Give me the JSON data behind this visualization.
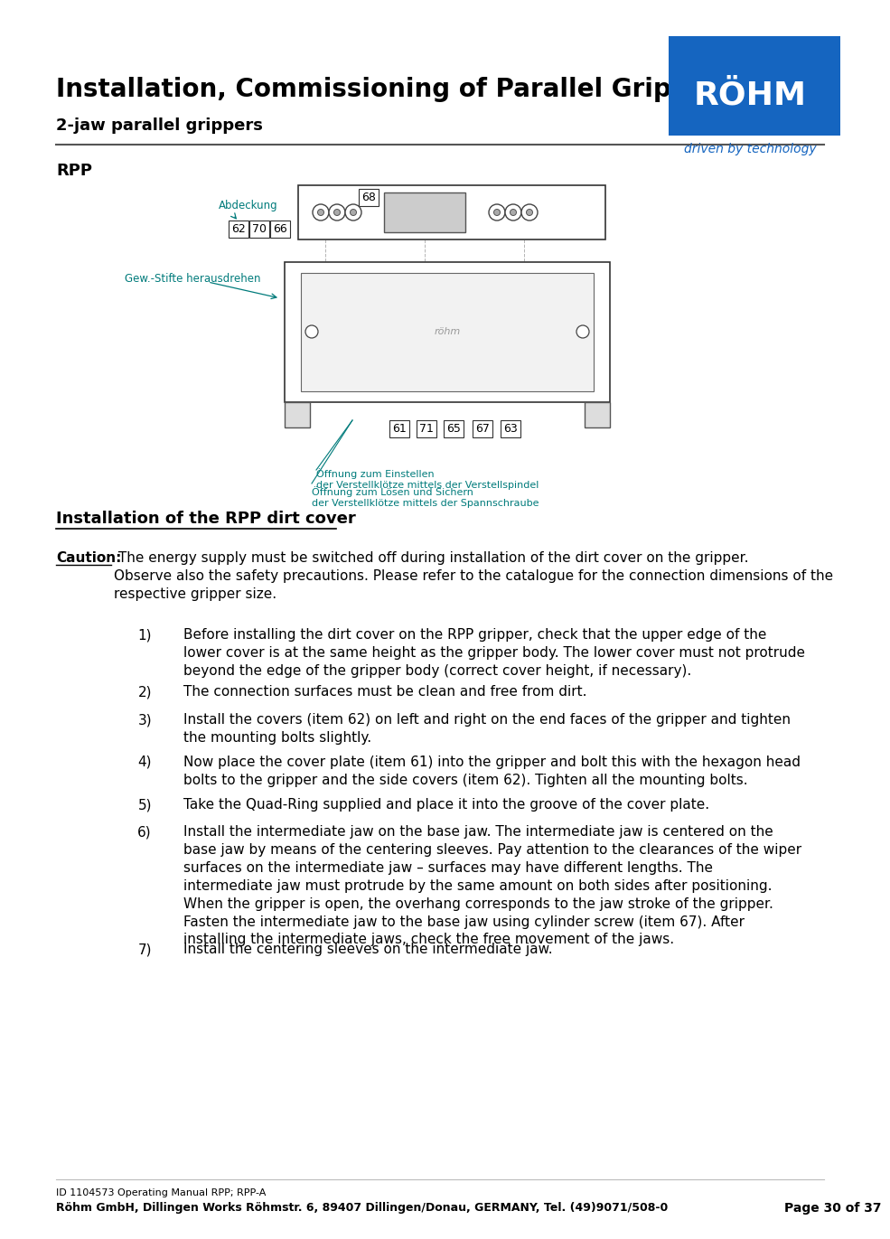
{
  "title": "Installation, Commissioning of Parallel Grippers",
  "subtitle": "2-jaw parallel grippers",
  "section_rpp": "RPP",
  "section_heading": "Installation of the RPP dirt cover",
  "caution_label": "Caution:",
  "caution_text": " The energy supply must be switched off during installation of the dirt cover on the gripper.\nObserve also the safety precautions. Please refer to the catalogue for the connection dimensions of the\nrespective gripper size.",
  "items": [
    "Before installing the dirt cover on the RPP gripper, check that the upper edge of the\nlower cover is at the same height as the gripper body. The lower cover must not protrude\nbeyond the edge of the gripper body (correct cover height, if necessary).",
    "The connection surfaces must be clean and free from dirt.",
    "Install the covers (item 62) on left and right on the end faces of the gripper and tighten\nthe mounting bolts slightly.",
    "Now place the cover plate (item 61) into the gripper and bolt this with the hexagon head\nbolts to the gripper and the side covers (item 62). Tighten all the mounting bolts.",
    "Take the Quad-Ring supplied and place it into the groove of the cover plate.",
    "Install the intermediate jaw on the base jaw. The intermediate jaw is centered on the\nbase jaw by means of the centering sleeves. Pay attention to the clearances of the wiper\nsurfaces on the intermediate jaw – surfaces may have different lengths. The\nintermediate jaw must protrude by the same amount on both sides after positioning.\nWhen the gripper is open, the overhang corresponds to the jaw stroke of the gripper.\nFasten the intermediate jaw to the base jaw using cylinder screw (item 67). After\ninstalling the intermediate jaws, check the free movement of the jaws.",
    "Install the centering sleeves on the intermediate jaw."
  ],
  "footer_line1": "ID 1104573 Operating Manual RPP; RPP-A",
  "footer_line2": "Röhm GmbH, Dillingen Works Röhmstr. 6, 89407 Dillingen/Donau, GERMANY, Tel. (49)9071/508-0",
  "footer_page": "Page 30 of 37",
  "bg_color": "#ffffff",
  "text_color": "#000000",
  "teal_color": "#007b7b",
  "diagram_label_abdeckung": "Abdeckung",
  "diagram_label_gew": "Gew.-Stifte herausdrehen",
  "diagram_label_offnung1": "Öffnung zum Einstellen\nder Verstellklötze mittels der Verstellspindel",
  "diagram_label_offnung2": "Öffnung zum Lösen und Sichern\nder Verstellklötze mittels der Spannschraube",
  "diagram_numbers_left": [
    "62",
    "70",
    "66"
  ],
  "diagram_numbers_top": [
    "68"
  ],
  "diagram_numbers_bottom": [
    "61",
    "71",
    "65",
    "67",
    "63"
  ]
}
